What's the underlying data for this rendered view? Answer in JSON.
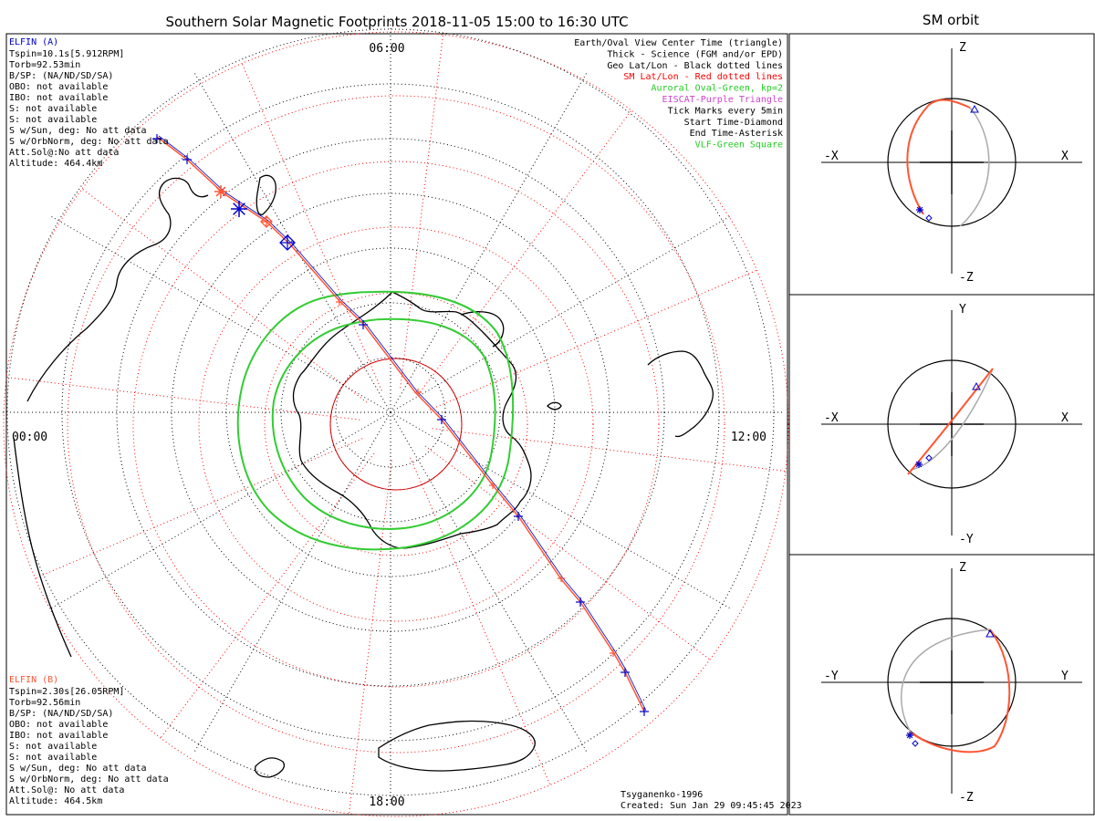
{
  "main": {
    "title": "Southern Solar Magnetic Footprints 2018-11-05 15:00 to 16:30 UTC",
    "time_labels": {
      "top": "06:00",
      "left": "00:00",
      "right": "12:00",
      "bottom": "18:00"
    }
  },
  "elfin_a": {
    "name": "ELFIN (A)",
    "color": "#0000cc",
    "lines": [
      "Tspin=10.1s[5.912RPM]",
      "Torb=92.53min",
      "B/SP: (NA/ND/SD/SA)",
      "OBO: not available",
      "IBO: not available",
      "S: not available",
      "S: not available",
      "S w/Sun, deg: No att data",
      "S w/OrbNorm, deg: No att data",
      "Att.Sol@:No att data",
      "Altitude: 464.4km"
    ]
  },
  "elfin_b": {
    "name": "ELFIN (B)",
    "color": "#ff5533",
    "lines": [
      "Tspin=2.30s[26.05RPM]",
      "Torb=92.56min",
      "B/SP: (NA/ND/SD/SA)",
      "OBO: not available",
      "IBO: not available",
      "S: not available",
      "S: not available",
      "S w/Sun, deg: No att data",
      "S w/OrbNorm, deg: No att data",
      "Att.Sol@: No att data",
      "Altitude: 464.5km"
    ]
  },
  "legend": [
    {
      "text": "Earth/Oval View Center Time (triangle)",
      "color": "#000000"
    },
    {
      "text": "Thick - Science (FGM and/or EPD)",
      "color": "#000000"
    },
    {
      "text": "Geo Lat/Lon - Black dotted lines",
      "color": "#000000"
    },
    {
      "text": "SM Lat/Lon - Red dotted lines",
      "color": "#ff0000"
    },
    {
      "text": "Auroral Oval-Green, kp=2",
      "color": "#22cc22"
    },
    {
      "text": "EISCAT-Purple Triangle",
      "color": "#cc44cc"
    },
    {
      "text": "Tick Marks every 5min",
      "color": "#000000"
    },
    {
      "text": "Start Time-Diamond",
      "color": "#000000"
    },
    {
      "text": "End Time-Asterisk",
      "color": "#000000"
    },
    {
      "text": "VLF-Green Square",
      "color": "#22cc22"
    }
  ],
  "footer": {
    "model": "Tsyganenko-1996",
    "created": "Created: Sun Jan 29 09:45:45 2023"
  },
  "orbit": {
    "title": "SM orbit",
    "panels": [
      {
        "top": "Z",
        "bottom": "-Z",
        "left": "-X",
        "right": "X"
      },
      {
        "top": "Y",
        "bottom": "-Y",
        "left": "-X",
        "right": "X"
      },
      {
        "top": "Z",
        "bottom": "-Z",
        "left": "-Y",
        "right": "Y"
      }
    ]
  },
  "colors": {
    "sm_grid": "#ff0000",
    "geo_grid": "#000000",
    "oval": "#33cc33",
    "elfin_a": "#0000cc",
    "elfin_b": "#ff5533",
    "orbit_alt": "#aaaaaa"
  }
}
